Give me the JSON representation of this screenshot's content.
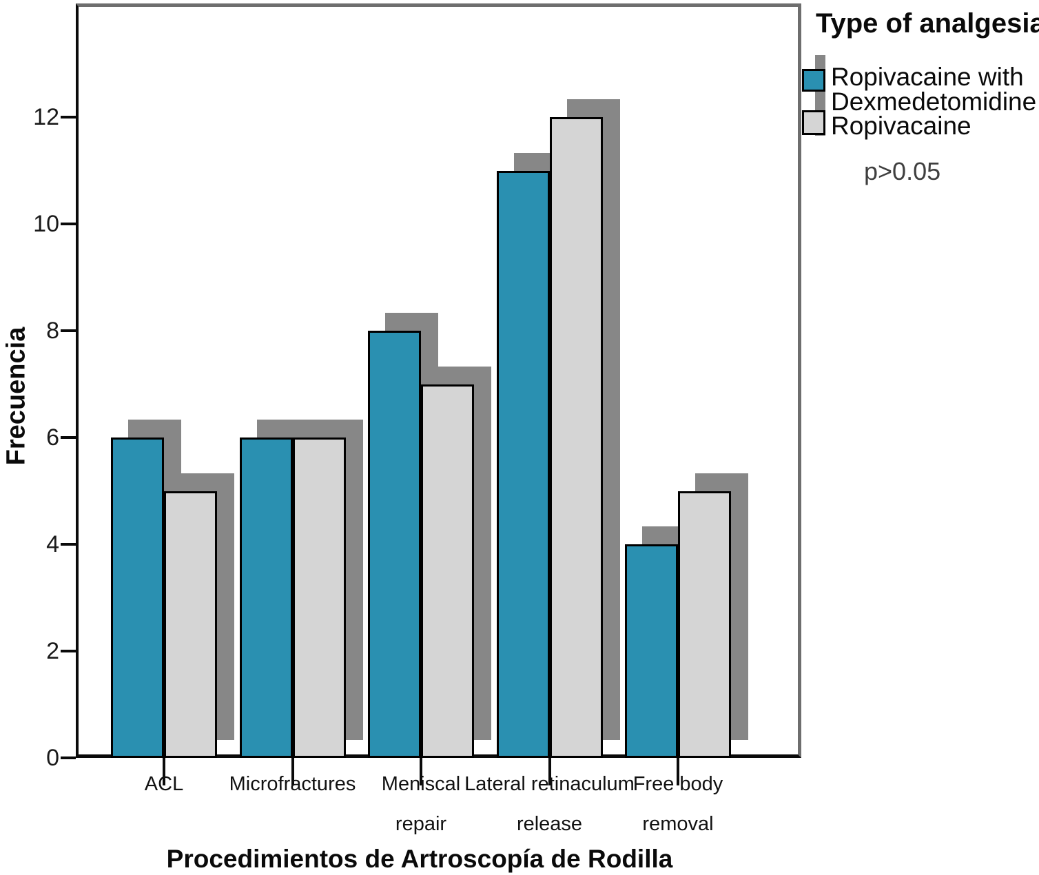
{
  "legend": {
    "title": "Type of analgesia",
    "annotation": "p>0.05",
    "entries": [
      {
        "label": "Ropivacaine with Dexmedetomidine",
        "lines": [
          "Ropivacaine with",
          "Dexmedetomidine"
        ],
        "color": "#2A90B1"
      },
      {
        "label": "Ropivacaine",
        "lines": [
          "Ropivacaine"
        ],
        "color": "#D5D5D5"
      }
    ]
  },
  "chart_data": {
    "type": "bar",
    "title": "",
    "xlabel": "Procedimientos de Artroscopía de Rodilla",
    "ylabel": "Frecuencia",
    "categories": [
      "ACL",
      "Microfractures",
      "Meniscal repair",
      "Lateral retinaculum release",
      "Free body removal"
    ],
    "category_label_lines": [
      [
        "ACL"
      ],
      [
        "Microfractures"
      ],
      [
        "Meniscal",
        "repair"
      ],
      [
        "Lateral retinaculum",
        "release"
      ],
      [
        "Free body",
        "removal"
      ]
    ],
    "series": [
      {
        "name": "Ropivacaine with Dexmedetomidine",
        "values": [
          6,
          6,
          8,
          11,
          4
        ],
        "color": "#2A90B1"
      },
      {
        "name": "Ropivacaine",
        "values": [
          5,
          6,
          7,
          12,
          5
        ],
        "color": "#D5D5D5"
      }
    ],
    "y_ticks": [
      0,
      2,
      4,
      6,
      8,
      10,
      12
    ],
    "ylim": [
      0,
      12.4
    ],
    "grid": false,
    "legend_position": "upper-right-outside",
    "annotation": "p>0.05",
    "style": {
      "bar_shadow_color": "#878787",
      "bar_border_color": "#000000",
      "frame_dark_color": "#0a0a0a",
      "frame_gray_color": "#6e6e6e",
      "annotation_color": "#3f3f3f"
    }
  }
}
